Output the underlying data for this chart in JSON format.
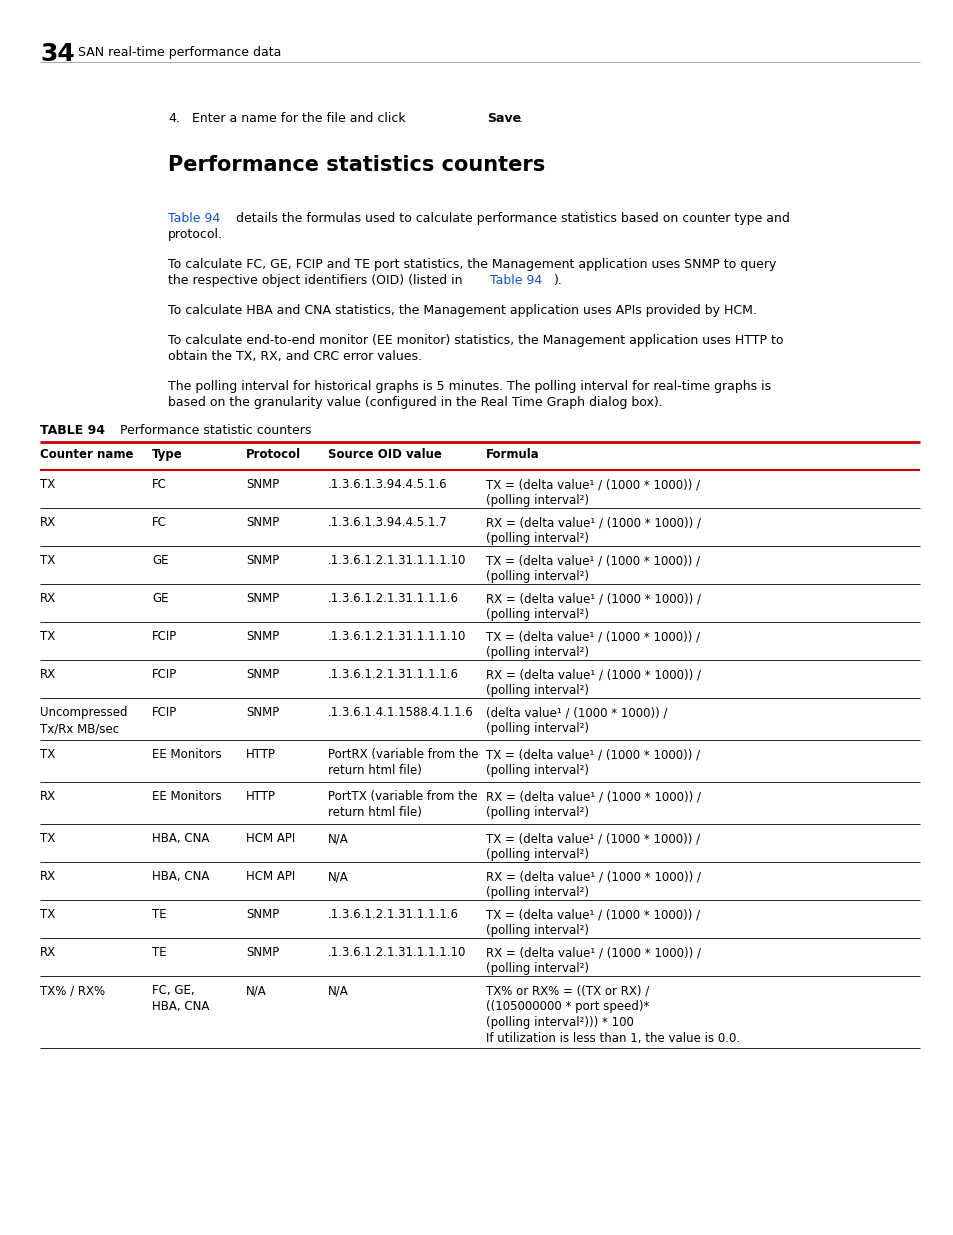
{
  "page_number": "34",
  "page_header": "SAN real-time performance data",
  "section_title": "Performance statistics counters",
  "table_label": "TABLE 94",
  "table_title": "Performance statistic counters",
  "table_headers": [
    "Counter name",
    "Type",
    "Protocol",
    "Source OID value",
    "Formula"
  ],
  "table_rows": [
    [
      "TX",
      "FC",
      "SNMP",
      ".1.3.6.1.3.94.4.5.1.6",
      "TX = (delta value¹ / (1000 * 1000)) /\n(polling interval²)"
    ],
    [
      "RX",
      "FC",
      "SNMP",
      ".1.3.6.1.3.94.4.5.1.7",
      "RX = (delta value¹ / (1000 * 1000)) /\n(polling interval²)"
    ],
    [
      "TX",
      "GE",
      "SNMP",
      ".1.3.6.1.2.1.31.1.1.1.10",
      "TX = (delta value¹ / (1000 * 1000)) /\n(polling interval²)"
    ],
    [
      "RX",
      "GE",
      "SNMP",
      ".1.3.6.1.2.1.31.1.1.1.6",
      "RX = (delta value¹ / (1000 * 1000)) /\n(polling interval²)"
    ],
    [
      "TX",
      "FCIP",
      "SNMP",
      ".1.3.6.1.2.1.31.1.1.1.10",
      "TX = (delta value¹ / (1000 * 1000)) /\n(polling interval²)"
    ],
    [
      "RX",
      "FCIP",
      "SNMP",
      ".1.3.6.1.2.1.31.1.1.1.6",
      "RX = (delta value¹ / (1000 * 1000)) /\n(polling interval²)"
    ],
    [
      "Uncompressed\nTx/Rx MB/sec",
      "FCIP",
      "SNMP",
      ".1.3.6.1.4.1.1588.4.1.1.6",
      "(delta value¹ / (1000 * 1000)) /\n(polling interval²)"
    ],
    [
      "TX",
      "EE Monitors",
      "HTTP",
      "PortRX (variable from the\nreturn html file)",
      "TX = (delta value¹ / (1000 * 1000)) /\n(polling interval²)"
    ],
    [
      "RX",
      "EE Monitors",
      "HTTP",
      "PortTX (variable from the\nreturn html file)",
      "RX = (delta value¹ / (1000 * 1000)) /\n(polling interval²)"
    ],
    [
      "TX",
      "HBA, CNA",
      "HCM API",
      "N/A",
      "TX = (delta value¹ / (1000 * 1000)) /\n(polling interval²)"
    ],
    [
      "RX",
      "HBA, CNA",
      "HCM API",
      "N/A",
      "RX = (delta value¹ / (1000 * 1000)) /\n(polling interval²)"
    ],
    [
      "TX",
      "TE",
      "SNMP",
      ".1.3.6.1.2.1.31.1.1.1.6",
      "TX = (delta value¹ / (1000 * 1000)) /\n(polling interval²)"
    ],
    [
      "RX",
      "TE",
      "SNMP",
      ".1.3.6.1.2.1.31.1.1.1.10",
      "RX = (delta value¹ / (1000 * 1000)) /\n(polling interval²)"
    ],
    [
      "TX% / RX%",
      "FC, GE,\nHBA, CNA",
      "N/A",
      "N/A",
      "TX% or RX% = ((TX or RX) /\n((105000000 * port speed)*\n(polling interval²))) * 100\nIf utilization is less than 1, the value is 0.0."
    ]
  ],
  "colors": {
    "background": "#ffffff",
    "body_text": "#000000",
    "link_color": "#1155cc",
    "red_line": "#cc0000",
    "black_line": "#000000",
    "gray_line": "#999999"
  },
  "row_heights_pts": [
    38,
    38,
    38,
    38,
    38,
    38,
    42,
    42,
    42,
    38,
    38,
    38,
    38,
    72
  ]
}
